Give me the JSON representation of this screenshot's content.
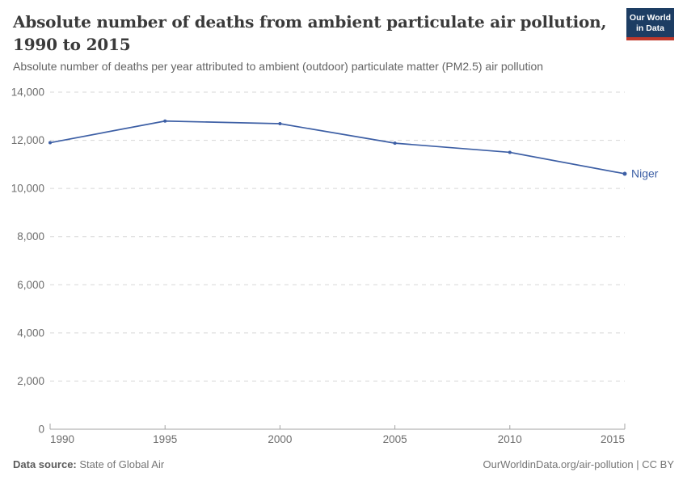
{
  "header": {
    "title_line1": "Absolute number of deaths from ambient particulate air pollution,",
    "title_line2": "1990 to 2015",
    "subtitle": "Absolute number of deaths per year attributed to ambient (outdoor) particulate matter (PM2.5) air pollution",
    "logo": {
      "line1": "Our World",
      "line2": "in Data"
    }
  },
  "chart_data": {
    "type": "line",
    "title": "Absolute number of deaths from ambient particulate air pollution, 1990 to 2015",
    "xlabel": "",
    "ylabel": "",
    "xlim": [
      1990,
      2015
    ],
    "ylim": [
      0,
      14000
    ],
    "x_ticks": [
      1990,
      1995,
      2000,
      2005,
      2010,
      2015
    ],
    "y_ticks": [
      0,
      2000,
      4000,
      6000,
      8000,
      10000,
      12000,
      14000
    ],
    "grid": true,
    "legend_position": "end-of-line",
    "series": [
      {
        "name": "Niger",
        "color": "#3d5fa5",
        "x": [
          1990,
          1995,
          2000,
          2005,
          2010,
          2015
        ],
        "values": [
          11900,
          12800,
          12690,
          11880,
          11500,
          10610
        ]
      }
    ]
  },
  "footer": {
    "datasource_label": "Data source:",
    "datasource_value": "State of Global Air",
    "attribution": "OurWorldinData.org/air-pollution | CC BY"
  },
  "colors": {
    "line": "#3d5fa5",
    "grid": "#d7d7d7",
    "axis": "#a3a3a3",
    "tick_text": "#6e6e6e",
    "title_text": "#3a3a3a",
    "subtitle_text": "#646464",
    "logo_navy": "#1d3d63",
    "logo_red": "#c0392b",
    "footer_text": "#757575"
  }
}
